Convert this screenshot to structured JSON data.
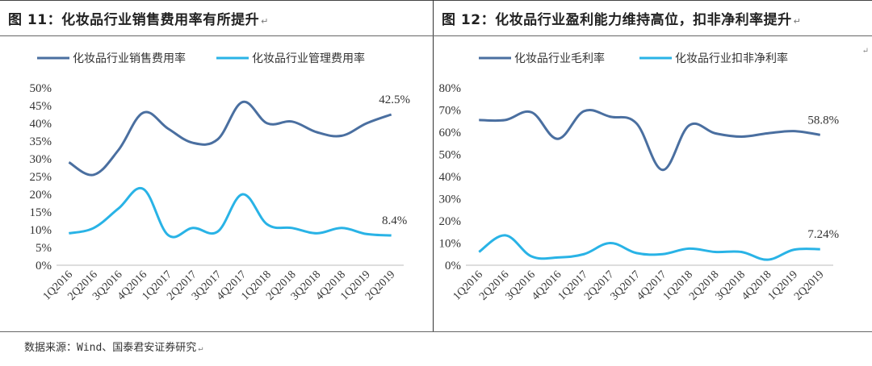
{
  "panels": [
    {
      "title": "图 11：化妆品行业销售费用率有所提升",
      "title_mark": "↵",
      "chart_data": {
        "type": "line",
        "title": "图 11：化妆品行业销售费用率有所提升",
        "categories": [
          "1Q2016",
          "2Q2016",
          "3Q2016",
          "4Q2016",
          "1Q2017",
          "2Q2017",
          "3Q2017",
          "4Q2017",
          "1Q2018",
          "2Q2018",
          "3Q2018",
          "4Q2018",
          "1Q2019",
          "2Q2019"
        ],
        "series": [
          {
            "name": "化妆品行业销售费用率",
            "color": "#4a6fa0",
            "values": [
              29.0,
              25.5,
              32.5,
              43.0,
              38.5,
              34.5,
              35.5,
              46.0,
              40.0,
              40.5,
              37.5,
              36.5,
              40.0,
              42.5
            ]
          },
          {
            "name": "化妆品行业管理费用率",
            "color": "#29b3e6",
            "values": [
              9.0,
              10.5,
              16.0,
              21.5,
              8.5,
              10.5,
              9.5,
              20.0,
              11.5,
              10.5,
              9.0,
              10.5,
              8.8,
              8.4
            ]
          }
        ],
        "ylim": [
          0,
          50
        ],
        "yticks": [
          "0%",
          "5%",
          "10%",
          "15%",
          "20%",
          "25%",
          "30%",
          "35%",
          "40%",
          "45%",
          "50%"
        ],
        "annotations": [
          "42.5%",
          "8.4%"
        ],
        "grid": false,
        "legend": "top"
      }
    },
    {
      "title": "图 12：化妆品行业盈利能力维持高位，扣非净利率提升",
      "title_mark": "↵",
      "chart_data": {
        "type": "line",
        "title": "图 12：化妆品行业盈利能力维持高位，扣非净利率提升",
        "categories": [
          "1Q2016",
          "2Q2016",
          "3Q2016",
          "4Q2016",
          "1Q2017",
          "2Q2017",
          "3Q2017",
          "4Q2017",
          "1Q2018",
          "2Q2018",
          "3Q2018",
          "4Q2018",
          "1Q2019",
          "2Q2019"
        ],
        "series": [
          {
            "name": "化妆品行业毛利率",
            "color": "#4a6fa0",
            "values": [
              65.5,
              65.5,
              69.0,
              57.0,
              69.5,
              67.0,
              64.0,
              43.0,
              63.0,
              59.5,
              58.0,
              59.5,
              60.5,
              58.8
            ]
          },
          {
            "name": "化妆品行业扣非净利率",
            "color": "#29b3e6",
            "values": [
              6.0,
              13.5,
              4.0,
              3.5,
              5.0,
              10.0,
              5.5,
              5.0,
              7.5,
              6.0,
              6.0,
              2.5,
              7.0,
              7.24
            ]
          }
        ],
        "ylim": [
          0,
          80
        ],
        "yticks": [
          "0%",
          "10%",
          "20%",
          "30%",
          "40%",
          "50%",
          "60%",
          "70%",
          "80%"
        ],
        "annotations": [
          "58.8%",
          "7.24%"
        ],
        "grid": false,
        "legend": "top"
      }
    }
  ],
  "source": "数据来源：Wind、国泰君安证券研究",
  "source_mark": "↵",
  "corner_mark": "↵"
}
